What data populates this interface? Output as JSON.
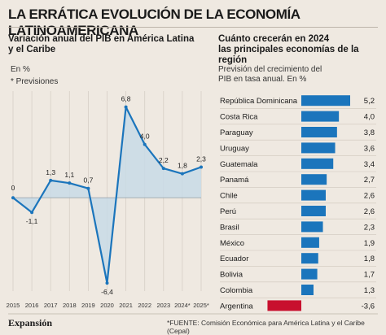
{
  "title": "LA ERRÁTICA EVOLUCIÓN DE LA ECONOMÍA LATINOAMERICANA",
  "left_chart": {
    "subtitle_lines": [
      "Variación anual del PIB en América Latina",
      "y el Caribe"
    ],
    "unit": "En %",
    "note": "* Previsiones"
  },
  "right_chart": {
    "subtitle_lines": [
      "Cuánto crecerán en 2024",
      "las principales economías de la región"
    ],
    "note_lines": [
      "Previsión del crecimiento del",
      "PIB en tasa anual. En %"
    ]
  },
  "footer": {
    "brand": "Expansión",
    "source": "*FUENTE: Comisión Económica para América Latina y el Caribe (Cepal)"
  },
  "colors": {
    "accent": "#1b75bc",
    "negative": "#c8102e",
    "area_fill": "#c8dbe6"
  },
  "chart_data": [
    {
      "type": "line",
      "x": [
        "2015",
        "2016",
        "2017",
        "2018",
        "2019",
        "2020",
        "2021",
        "2022",
        "2023",
        "2024*",
        "2025*"
      ],
      "values": [
        0,
        -1.1,
        1.3,
        1.1,
        0.7,
        -6.4,
        6.8,
        4.0,
        2.2,
        1.8,
        2.3
      ],
      "labels": [
        "0",
        "-1,1",
        "1,3",
        "1,1",
        "0,7",
        "-6,4",
        "6,8",
        "4,0",
        "2,2",
        "1,8",
        "2,3"
      ],
      "ylim": [
        -7,
        8
      ],
      "grid": true
    },
    {
      "type": "bar",
      "orientation": "horizontal",
      "categories": [
        "República Dominicana",
        "Costa Rica",
        "Paraguay",
        "Uruguay",
        "Guatemala",
        "Panamá",
        "Chile",
        "Perú",
        "Brasil",
        "México",
        "Ecuador",
        "Bolivia",
        "Colombia",
        "Argentina"
      ],
      "values": [
        5.2,
        4.0,
        3.8,
        3.6,
        3.4,
        2.7,
        2.6,
        2.6,
        2.3,
        1.9,
        1.8,
        1.7,
        1.3,
        -3.6
      ],
      "labels": [
        "5,2",
        "4,0",
        "3,8",
        "3,6",
        "3,4",
        "2,7",
        "2,6",
        "2,6",
        "2,3",
        "1,9",
        "1,8",
        "1,7",
        "1,3",
        "-3,6"
      ]
    }
  ]
}
